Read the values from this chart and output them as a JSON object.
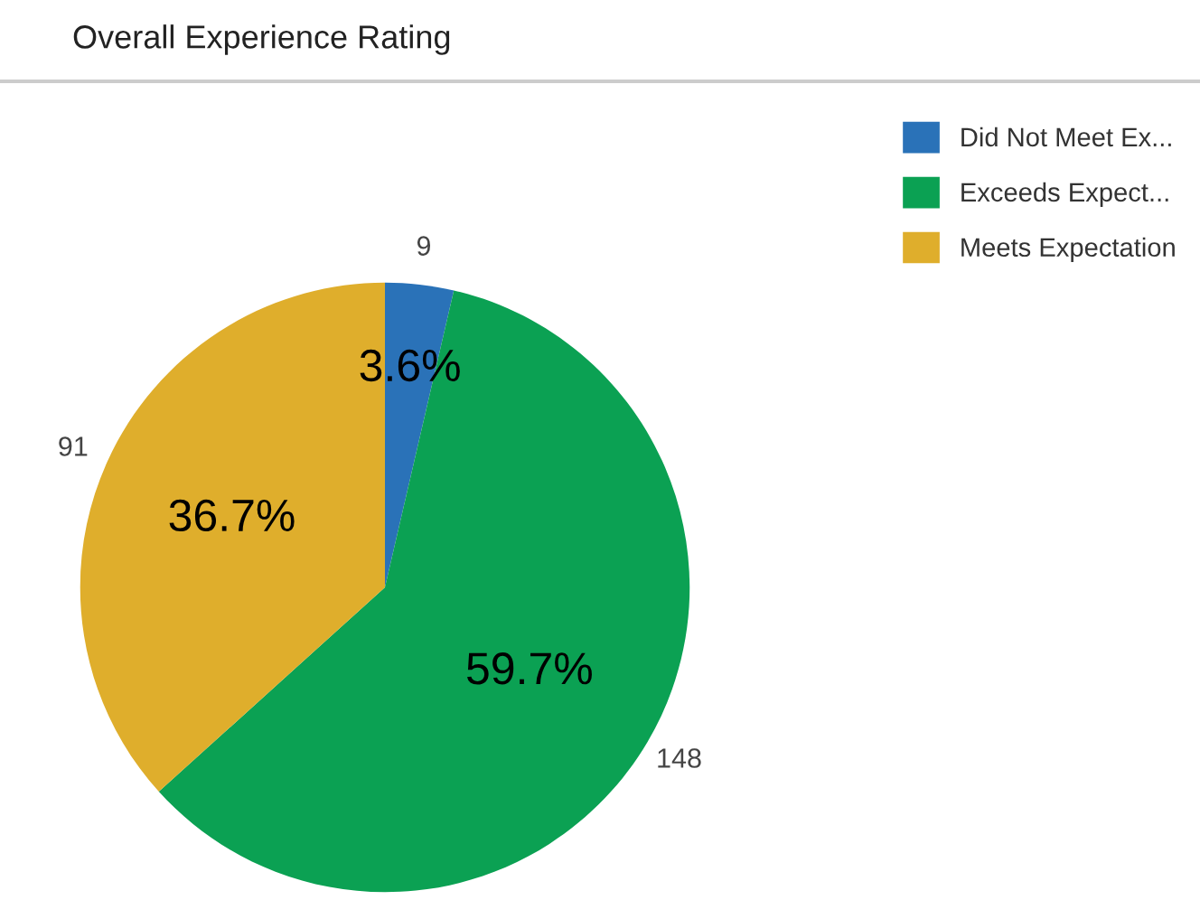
{
  "chart_data": {
    "type": "pie",
    "title": "Overall Experience Rating",
    "categories": [
      "Did Not Meet Ex...",
      "Exceeds Expect...",
      "Meets Expectation"
    ],
    "values": [
      9,
      148,
      91
    ],
    "colors": [
      "#2a72b8",
      "#0ba153",
      "#dfae2c"
    ],
    "data_labels": true,
    "annotations": [
      "3.6%",
      "59.7%",
      "36.7%"
    ],
    "legend": "top right"
  }
}
